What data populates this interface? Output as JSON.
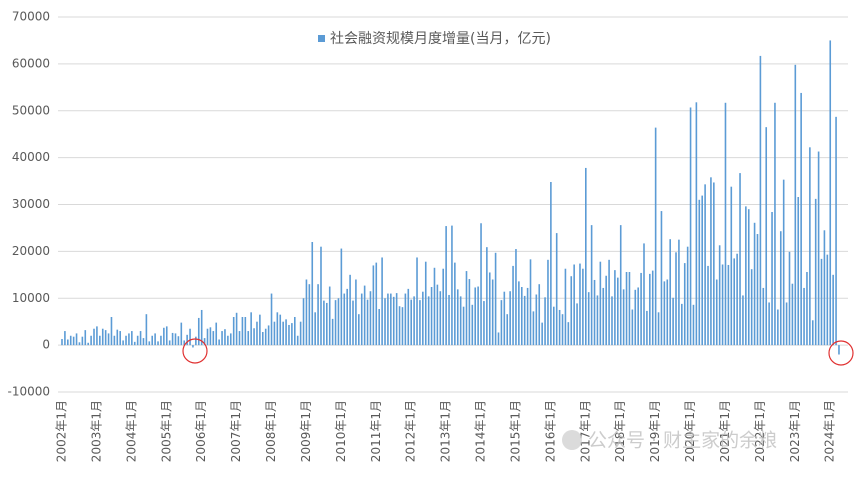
{
  "chart_data": {
    "type": "bar",
    "legend_label": "社会融资规模月度增量(当月，亿元)",
    "color": "#5b9bd5",
    "watermark": "公众号 · 财主家的余粮",
    "ylim": [
      -10000,
      70000
    ],
    "yticks": [
      -10000,
      0,
      10000,
      20000,
      30000,
      40000,
      50000,
      60000,
      70000
    ],
    "grid": true,
    "categories": [
      "2002年1月",
      null,
      null,
      null,
      null,
      null,
      null,
      null,
      null,
      null,
      null,
      null,
      "2003年1月",
      null,
      null,
      null,
      null,
      null,
      null,
      null,
      null,
      null,
      null,
      null,
      "2004年1月",
      null,
      null,
      null,
      null,
      null,
      null,
      null,
      null,
      null,
      null,
      null,
      "2005年1月",
      null,
      null,
      null,
      null,
      null,
      null,
      null,
      null,
      null,
      null,
      null,
      "2006年1月",
      null,
      null,
      null,
      null,
      null,
      null,
      null,
      null,
      null,
      null,
      null,
      "2007年1月",
      null,
      null,
      null,
      null,
      null,
      null,
      null,
      null,
      null,
      null,
      null,
      "2008年1月",
      null,
      null,
      null,
      null,
      null,
      null,
      null,
      null,
      null,
      null,
      null,
      "2009年1月",
      null,
      null,
      null,
      null,
      null,
      null,
      null,
      null,
      null,
      null,
      null,
      "2010年1月",
      null,
      null,
      null,
      null,
      null,
      null,
      null,
      null,
      null,
      null,
      null,
      "2011年1月",
      null,
      null,
      null,
      null,
      null,
      null,
      null,
      null,
      null,
      null,
      null,
      "2012年1月",
      null,
      null,
      null,
      null,
      null,
      null,
      null,
      null,
      null,
      null,
      null,
      "2013年1月",
      null,
      null,
      null,
      null,
      null,
      null,
      null,
      null,
      null,
      null,
      null,
      "2014年1月",
      null,
      null,
      null,
      null,
      null,
      null,
      null,
      null,
      null,
      null,
      null,
      "2015年1月",
      null,
      null,
      null,
      null,
      null,
      null,
      null,
      null,
      null,
      null,
      null,
      "2016年1月",
      null,
      null,
      null,
      null,
      null,
      null,
      null,
      null,
      null,
      null,
      null,
      "2017年1月",
      null,
      null,
      null,
      null,
      null,
      null,
      null,
      null,
      null,
      null,
      null,
      "2018年1月",
      null,
      null,
      null,
      null,
      null,
      null,
      null,
      null,
      null,
      null,
      null,
      "2019年1月",
      null,
      null,
      null,
      null,
      null,
      null,
      null,
      null,
      null,
      null,
      null,
      "2020年1月",
      null,
      null,
      null,
      null,
      null,
      null,
      null,
      null,
      null,
      null,
      null,
      "2021年1月",
      null,
      null,
      null,
      null,
      null,
      null,
      null,
      null,
      null,
      null,
      null,
      "2022年1月",
      null,
      null,
      null,
      null,
      null,
      null,
      null,
      null,
      null,
      null,
      null,
      "2023年1月",
      null,
      null,
      null,
      null,
      null,
      null,
      null,
      null,
      null,
      null,
      null,
      "2024年1月",
      null,
      null,
      null
    ],
    "values": [
      1300,
      3000,
      1200,
      2000,
      1800,
      2500,
      600,
      1800,
      3200,
      500,
      2000,
      3500,
      4000,
      2000,
      3500,
      3200,
      2500,
      6000,
      2000,
      3300,
      3000,
      1000,
      2000,
      2500,
      3000,
      700,
      2000,
      3000,
      1500,
      6600,
      800,
      2000,
      2500,
      800,
      2000,
      3700,
      4000,
      1000,
      2600,
      2500,
      1900,
      4800,
      1000,
      2200,
      3500,
      -500,
      1800,
      5800,
      7500,
      1500,
      3500,
      3800,
      3000,
      4800,
      1200,
      3000,
      3400,
      2000,
      2500,
      6000,
      6900,
      3000,
      6000,
      6000,
      3000,
      7000,
      3600,
      5000,
      6500,
      2800,
      3500,
      4200,
      11000,
      5000,
      7000,
      6500,
      5000,
      5500,
      4300,
      4700,
      6000,
      2000,
      5000,
      10000,
      14000,
      13000,
      22000,
      7000,
      13000,
      21000,
      9500,
      9000,
      12500,
      5600,
      9600,
      10000,
      20600,
      11000,
      12000,
      15000,
      9500,
      14000,
      6600,
      11000,
      12700,
      9700,
      11500,
      17000,
      17600,
      7700,
      18700,
      10000,
      11000,
      11000,
      10300,
      11100,
      8300,
      8100,
      11000,
      12000,
      9700,
      10400,
      18700,
      9600,
      11400,
      17800,
      10400,
      12400,
      16500,
      12900,
      11500,
      16300,
      25400,
      10700,
      25500,
      17600,
      11900,
      10400,
      8200,
      15800,
      14100,
      8600,
      12300,
      12500,
      26000,
      9400,
      20900,
      15500,
      14000,
      19700,
      2700,
      9600,
      11400,
      6600,
      11500,
      16900,
      20500,
      13600,
      12400,
      10500,
      12200,
      18300,
      7200,
      10800,
      13000,
      4800,
      10200,
      18200,
      34800,
      8200,
      23900,
      7500,
      6600,
      16300,
      4900,
      14700,
      17200,
      8900,
      17400,
      16300,
      37800,
      11300,
      25600,
      13900,
      10600,
      17800,
      12200,
      14800,
      18200,
      10400,
      16000,
      14400,
      25600,
      11900,
      15600,
      15600,
      7600,
      11800,
      12300,
      15400,
      21700,
      7300,
      15200,
      15900,
      46400,
      7000,
      28600,
      13600,
      14000,
      22600,
      10100,
      19800,
      22500,
      8800,
      17500,
      21000,
      50700,
      8600,
      51800,
      31000,
      31900,
      34300,
      16900,
      35800,
      34700,
      14000,
      21300,
      17200,
      51700,
      17100,
      33800,
      18500,
      19500,
      36700,
      10600,
      29600,
      29000,
      16200,
      26100,
      23700,
      61700,
      12200,
      46500,
      9100,
      28400,
      51700,
      7600,
      24300,
      35300,
      9100,
      19900,
      13100,
      59800,
      31600,
      53800,
      12200,
      15600,
      42200,
      5300,
      31200,
      41300,
      18400,
      24500,
      19300,
      65000,
      15000,
      48700,
      -2000
    ]
  }
}
